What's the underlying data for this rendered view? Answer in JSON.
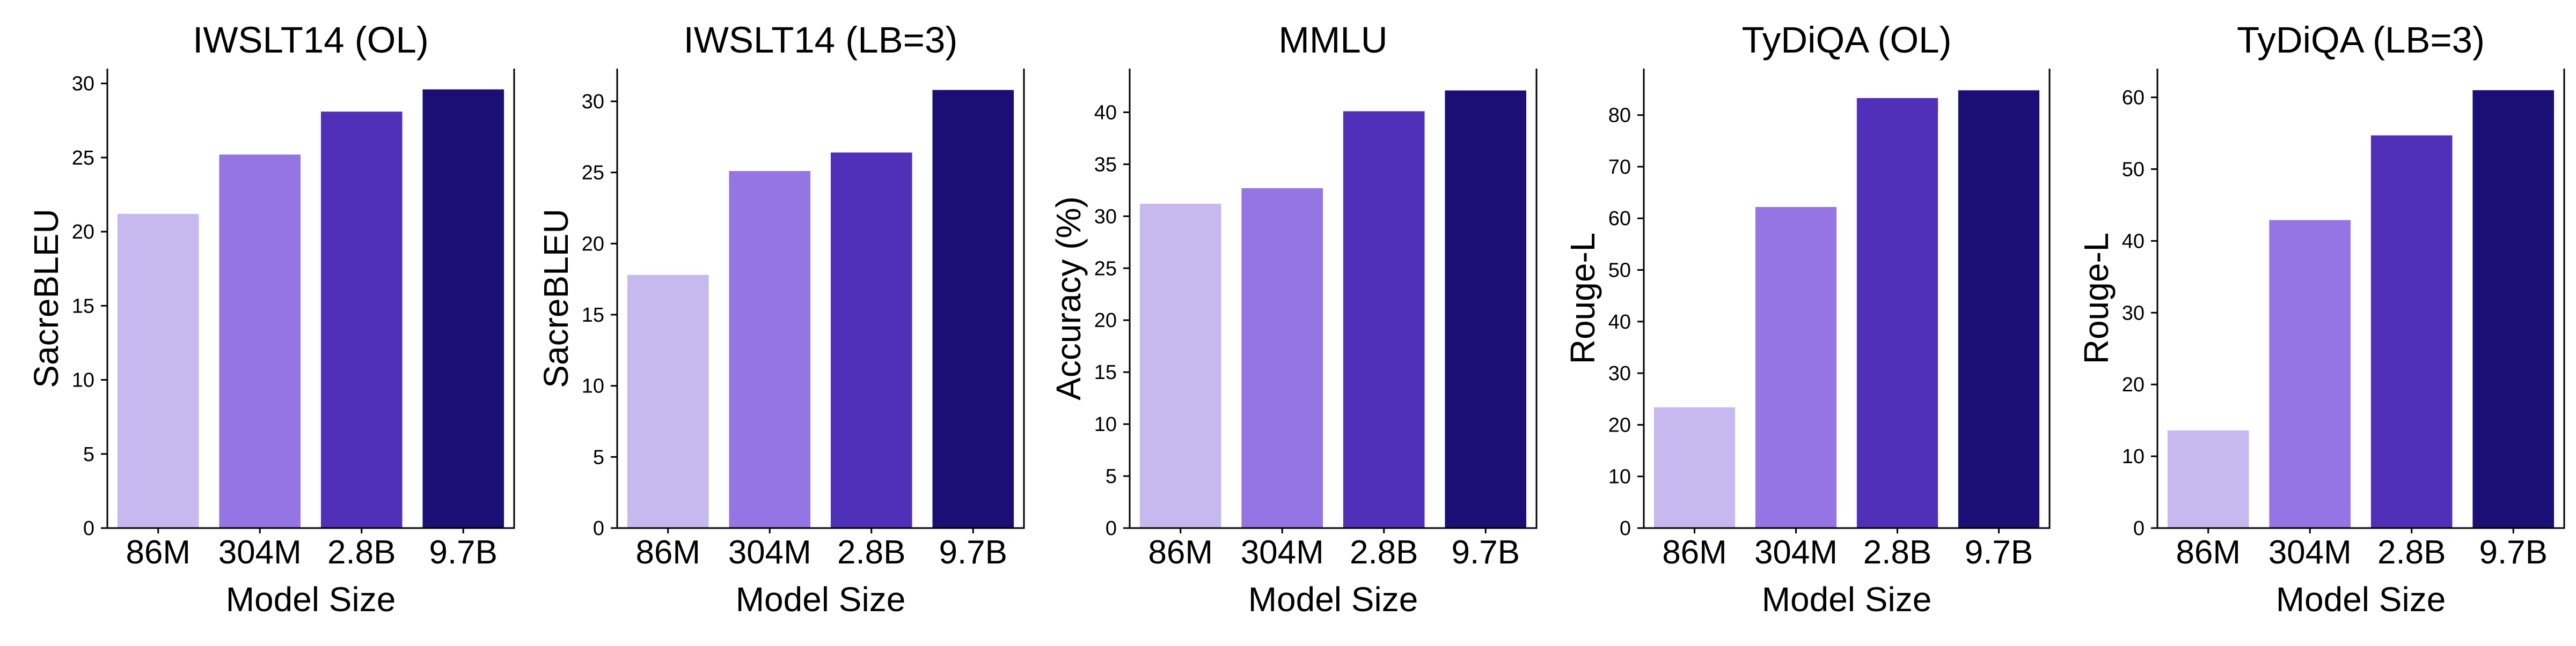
{
  "chart_data": [
    {
      "type": "bar",
      "title": "IWSLT14 (OL)",
      "xlabel": "Model Size",
      "ylabel": "SacreBLEU",
      "categories": [
        "86M",
        "304M",
        "2.8B",
        "9.7B"
      ],
      "values": [
        21.2,
        25.2,
        28.1,
        29.6
      ],
      "ylim": [
        0,
        31
      ],
      "yticks": [
        0,
        5,
        10,
        15,
        20,
        25,
        30
      ],
      "grid": false
    },
    {
      "type": "bar",
      "title": "IWSLT14 (LB=3)",
      "xlabel": "Model Size",
      "ylabel": "SacreBLEU",
      "categories": [
        "86M",
        "304M",
        "2.8B",
        "9.7B"
      ],
      "values": [
        17.8,
        25.1,
        26.4,
        30.8
      ],
      "ylim": [
        0,
        32.3
      ],
      "yticks": [
        0,
        5,
        10,
        15,
        20,
        25,
        30
      ],
      "grid": false
    },
    {
      "type": "bar",
      "title": "MMLU",
      "xlabel": "Model Size",
      "ylabel": "Accuracy (%)",
      "categories": [
        "86M",
        "304M",
        "2.8B",
        "9.7B"
      ],
      "values": [
        31.2,
        32.7,
        40.1,
        42.1
      ],
      "ylim": [
        0,
        44.2
      ],
      "yticks": [
        0,
        5,
        10,
        15,
        20,
        25,
        30,
        35,
        40
      ],
      "grid": false
    },
    {
      "type": "bar",
      "title": "TyDiQA (OL)",
      "xlabel": "Model Size",
      "ylabel": "Rouge-L",
      "categories": [
        "86M",
        "304M",
        "2.8B",
        "9.7B"
      ],
      "values": [
        23.4,
        62.2,
        83.3,
        84.8
      ],
      "ylim": [
        0,
        89
      ],
      "yticks": [
        0,
        10,
        20,
        30,
        40,
        50,
        60,
        70,
        80
      ],
      "grid": false
    },
    {
      "type": "bar",
      "title": "TyDiQA (LB=3)",
      "xlabel": "Model Size",
      "ylabel": "Rouge-L",
      "categories": [
        "86M",
        "304M",
        "2.8B",
        "9.7B"
      ],
      "values": [
        13.6,
        42.9,
        54.7,
        61.0
      ],
      "ylim": [
        0,
        64
      ],
      "yticks": [
        0,
        10,
        20,
        30,
        40,
        50,
        60
      ],
      "grid": false
    }
  ],
  "colors": {
    "bars": [
      "#c7b9f0",
      "#9475e3",
      "#5030b8",
      "#1b0e74"
    ],
    "axis": "#000000"
  }
}
